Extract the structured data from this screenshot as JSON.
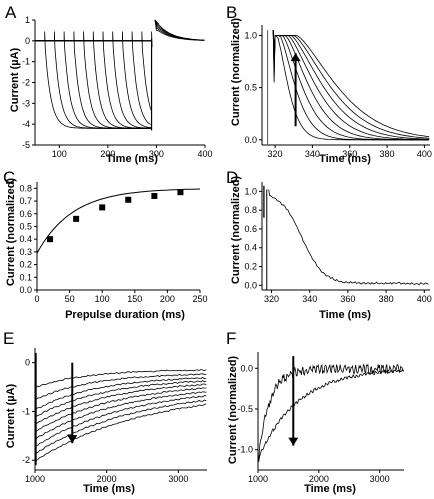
{
  "panels": [
    {
      "id": "A",
      "label": "A",
      "xlabel": "Time (ms)",
      "ylabel": "Current (µA)",
      "xticks": [
        "100",
        "200",
        "300",
        "400"
      ],
      "yticks": [
        "1",
        "0",
        "-1",
        "-2",
        "-3",
        "-4",
        "-5"
      ]
    },
    {
      "id": "B",
      "label": "B",
      "xlabel": "Time (ms)",
      "ylabel": "Current (normalized)",
      "xticks": [
        "320",
        "340",
        "360",
        "380",
        "400"
      ],
      "yticks": [
        "1.0",
        "0.5",
        "0.0"
      ]
    },
    {
      "id": "C",
      "label": "C",
      "xlabel": "Prepulse duration (ms)",
      "ylabel": "Current (normalized)",
      "xticks": [
        "0",
        "50",
        "100",
        "150",
        "200",
        "250"
      ],
      "yticks": [
        "0.8",
        "0.7",
        "0.6",
        "0.5",
        "0.4",
        "0.3",
        "0.2",
        "0.1",
        "0.0"
      ]
    },
    {
      "id": "D",
      "label": "D",
      "xlabel": "Time (ms)",
      "ylabel": "Current (normalized)",
      "xticks": [
        "320",
        "340",
        "360",
        "380",
        "400"
      ],
      "yticks": [
        "1.0",
        "0.8",
        "0.6",
        "0.4",
        "0.2",
        "0.0"
      ]
    },
    {
      "id": "E",
      "label": "E",
      "xlabel": "Time (ms)",
      "ylabel": "Current (µA)",
      "xticks": [
        "1000",
        "2000",
        "3000"
      ],
      "yticks": [
        "0",
        "-1",
        "-2"
      ]
    },
    {
      "id": "F",
      "label": "F",
      "xlabel": "Time (ms)",
      "ylabel": "Current (normalized)",
      "xticks": [
        "1000",
        "2000",
        "3000"
      ],
      "yticks": [
        "0.0",
        "-0.5",
        "-1.0"
      ]
    }
  ],
  "chart_data": [
    {
      "type": "line",
      "panel": "A",
      "xlim": [
        50,
        400
      ],
      "ylim": [
        -5,
        1
      ],
      "prepulse_end_times": [
        70,
        90,
        110,
        130,
        150,
        170,
        190,
        210,
        230,
        250,
        270,
        290
      ]
    },
    {
      "type": "line",
      "panel": "B",
      "xlim": [
        313,
        403
      ],
      "ylim": [
        -0.05,
        1.1
      ]
    },
    {
      "type": "scatter",
      "panel": "C",
      "xlim": [
        0,
        250
      ],
      "ylim": [
        0,
        0.85
      ],
      "x": [
        20,
        60,
        100,
        140,
        180,
        220
      ],
      "y": [
        0.4,
        0.56,
        0.65,
        0.71,
        0.74,
        0.77
      ]
    },
    {
      "type": "line",
      "panel": "D",
      "xlim": [
        315,
        403
      ],
      "ylim": [
        -0.05,
        1.1
      ]
    },
    {
      "type": "line",
      "panel": "E",
      "xlim": [
        1000,
        3400
      ],
      "ylim": [
        -2.2,
        0.3
      ],
      "trace_amplitudes": [
        0.5,
        0.75,
        0.95,
        1.1,
        1.25,
        1.4,
        1.55,
        1.7,
        1.85,
        2.0
      ]
    },
    {
      "type": "line",
      "panel": "F",
      "xlim": [
        1000,
        3400
      ],
      "ylim": [
        -1.25,
        0.2
      ]
    }
  ]
}
